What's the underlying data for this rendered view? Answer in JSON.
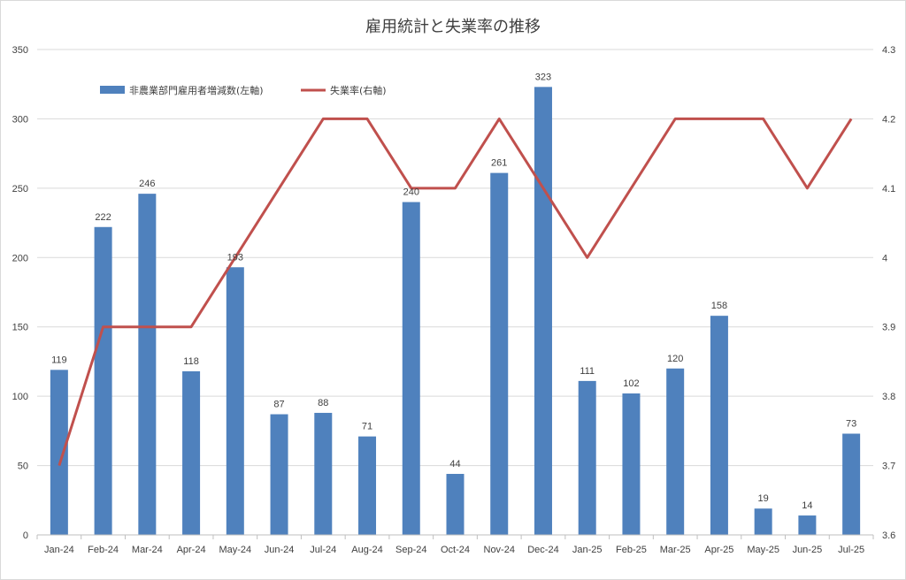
{
  "chart_data": {
    "type": "bar",
    "title": "雇用統計と失業率の推移",
    "categories": [
      "Jan-24",
      "Feb-24",
      "Mar-24",
      "Apr-24",
      "May-24",
      "Jun-24",
      "Jul-24",
      "Aug-24",
      "Sep-24",
      "Oct-24",
      "Nov-24",
      "Dec-24",
      "Jan-25",
      "Feb-25",
      "Mar-25",
      "Apr-25",
      "May-25",
      "Jun-25",
      "Jul-25"
    ],
    "series": [
      {
        "name": "非農業部門雇用者増減数(左軸)",
        "type": "bar",
        "axis": "left",
        "color": "#4f81bd",
        "values": [
          119,
          222,
          246,
          118,
          193,
          87,
          88,
          71,
          240,
          44,
          261,
          323,
          111,
          102,
          120,
          158,
          19,
          14,
          73
        ]
      },
      {
        "name": "失業率(右軸)",
        "type": "line",
        "axis": "right",
        "color": "#c0504d",
        "values": [
          3.7,
          3.9,
          3.9,
          3.9,
          4.0,
          4.1,
          4.2,
          4.2,
          4.1,
          4.1,
          4.2,
          4.1,
          4.0,
          4.1,
          4.2,
          4.2,
          4.2,
          4.1,
          4.2
        ]
      }
    ],
    "y_left": {
      "min": 0,
      "max": 350,
      "ticks": [
        "0",
        "50",
        "100",
        "150",
        "200",
        "250",
        "300",
        "350"
      ]
    },
    "y_right": {
      "min": 3.6,
      "max": 4.3,
      "ticks": [
        "3.6",
        "3.7",
        "3.8",
        "3.9",
        "4",
        "4.1",
        "4.2",
        "4.3"
      ]
    },
    "grid": true,
    "legend_position": "top-left"
  }
}
